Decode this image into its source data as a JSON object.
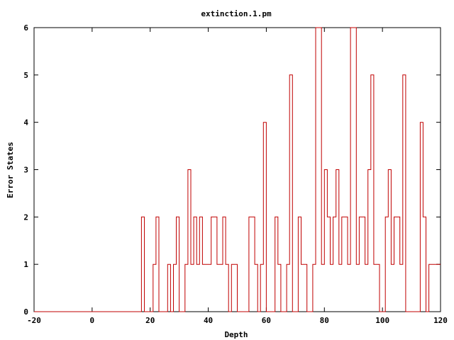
{
  "chart_data": {
    "type": "line",
    "style": "steps",
    "title": "extinction.1.pm",
    "xlabel": "Depth",
    "ylabel": "Error States",
    "xlim": [
      -20,
      120
    ],
    "ylim": [
      0,
      6
    ],
    "xticks": [
      -20,
      0,
      20,
      40,
      60,
      80,
      100,
      120
    ],
    "yticks": [
      0,
      1,
      2,
      3,
      4,
      5,
      6
    ],
    "grid": false,
    "line_color": "#c00000",
    "series": [
      {
        "x": [
          -20,
          17,
          18,
          21,
          22,
          23,
          26,
          27,
          28,
          29,
          30,
          32,
          33,
          34,
          35,
          36,
          37,
          38,
          39,
          40,
          41,
          43,
          45,
          46,
          47,
          48,
          49,
          50,
          51,
          54,
          56,
          57,
          58,
          59,
          60,
          63,
          64,
          65,
          67,
          68,
          69,
          71,
          72,
          74,
          76,
          77,
          78,
          79,
          80,
          81,
          82,
          83,
          84,
          85,
          86,
          87,
          88,
          89,
          90,
          91,
          92,
          93,
          94,
          95,
          96,
          97,
          98,
          99,
          101,
          102,
          103,
          104,
          106,
          107,
          108,
          109,
          113,
          114,
          115,
          116,
          117,
          118,
          119,
          120
        ],
        "y": [
          0,
          2,
          0,
          1,
          2,
          0,
          1,
          0,
          1,
          2,
          0,
          1,
          3,
          1,
          2,
          1,
          2,
          1,
          1,
          1,
          2,
          1,
          2,
          1,
          0,
          1,
          1,
          0,
          0,
          2,
          1,
          0,
          1,
          4,
          0,
          2,
          1,
          0,
          1,
          5,
          0,
          2,
          1,
          0,
          1,
          6,
          6,
          1,
          3,
          2,
          1,
          2,
          3,
          1,
          2,
          2,
          1,
          6,
          6,
          1,
          2,
          2,
          1,
          3,
          5,
          1,
          1,
          0,
          2,
          3,
          1,
          2,
          1,
          5,
          0,
          0,
          4,
          2,
          0,
          1,
          1,
          1,
          1,
          1
        ]
      }
    ]
  }
}
